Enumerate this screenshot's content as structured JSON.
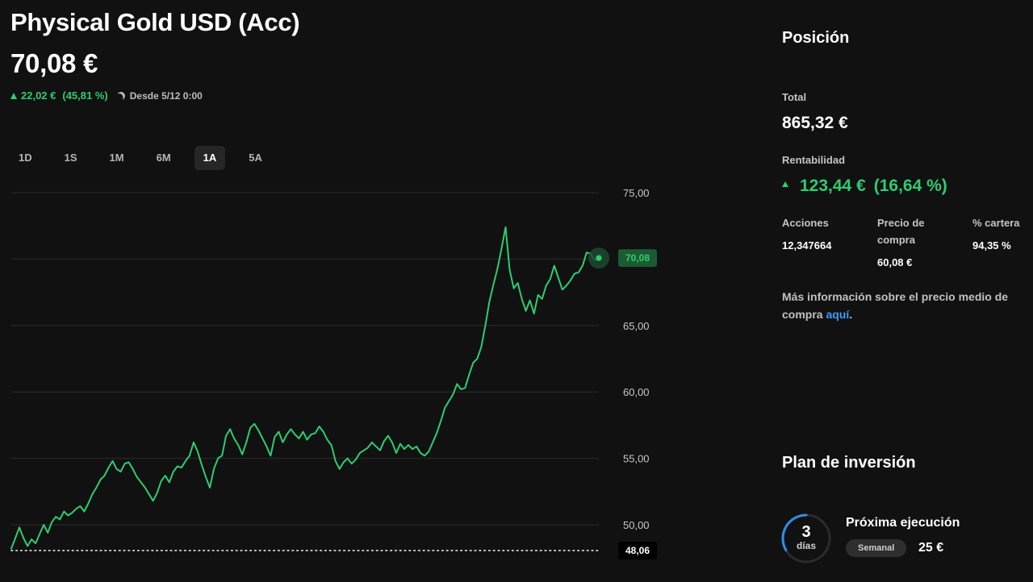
{
  "header": {
    "title": "Physical Gold USD (Acc)",
    "price": "70,08 €",
    "change_abs": "22,02 €",
    "change_pct": "(45,81 %)",
    "since": "Desde 5/12 0:00"
  },
  "range_tabs": [
    {
      "label": "1D",
      "active": false
    },
    {
      "label": "1S",
      "active": false
    },
    {
      "label": "1M",
      "active": false
    },
    {
      "label": "6M",
      "active": false
    },
    {
      "label": "1A",
      "active": true
    },
    {
      "label": "5A",
      "active": false
    }
  ],
  "chart_data": {
    "type": "line",
    "y_ticks": [
      "75,00",
      "70,00",
      "65,00",
      "60,00",
      "55,00",
      "50,00"
    ],
    "ylim": [
      48,
      75
    ],
    "series": [
      {
        "color": "#2ecc71",
        "values": [
          48.2,
          49.0,
          49.8,
          49.0,
          48.4,
          48.9,
          48.6,
          49.3,
          50.0,
          49.4,
          50.2,
          50.6,
          50.4,
          51.0,
          50.7,
          50.9,
          51.2,
          51.4,
          51.0,
          51.6,
          52.3,
          52.8,
          53.4,
          53.7,
          54.3,
          54.8,
          54.2,
          54.0,
          54.6,
          54.7,
          54.2,
          53.6,
          53.2,
          52.8,
          52.3,
          51.8,
          52.4,
          53.3,
          53.7,
          53.2,
          54.0,
          54.4,
          54.3,
          54.8,
          55.2,
          56.2,
          55.5,
          54.5,
          53.6,
          52.8,
          54.2,
          55.0,
          55.2,
          56.7,
          57.2,
          56.5,
          56.0,
          55.3,
          56.2,
          57.3,
          57.6,
          57.1,
          56.5,
          55.9,
          55.2,
          56.6,
          57.0,
          56.2,
          56.8,
          57.2,
          56.8,
          56.5,
          57.0,
          56.4,
          56.8,
          56.9,
          57.4,
          57.0,
          56.4,
          56.0,
          54.8,
          54.2,
          54.7,
          55.0,
          54.6,
          54.9,
          55.4,
          55.6,
          55.8,
          56.2,
          55.9,
          55.6,
          56.3,
          56.7,
          56.2,
          55.4,
          56.1,
          55.7,
          56.0,
          55.7,
          55.9,
          55.4,
          55.2,
          55.5,
          56.2,
          56.9,
          57.8,
          58.8,
          59.3,
          59.8,
          60.6,
          60.2,
          60.3,
          61.3,
          62.2,
          62.5,
          63.4,
          65.0,
          66.8,
          68.1,
          69.3,
          70.8,
          72.4,
          69.2,
          67.8,
          68.2,
          67.0,
          66.1,
          66.9,
          65.9,
          67.3,
          67.0,
          68.0,
          68.5,
          69.5,
          68.6,
          67.7,
          68.0,
          68.4,
          68.9,
          69.0,
          69.5,
          70.5,
          70.4,
          69.9,
          70.08
        ],
        "baseline": 48.06,
        "last": "70,08",
        "baseline_label": "48,06"
      }
    ]
  },
  "sidebar": {
    "title": "Posición",
    "total_label": "Total",
    "total_value": "865,32 €",
    "rent_label": "Rentabilidad",
    "rent_abs": "123,44 €",
    "rent_pct": "(16,64 %)",
    "acciones_label": "Acciones",
    "acciones_value": "12,347664",
    "precio_label_1": "Precio de",
    "precio_label_2": "compra",
    "precio_value": "60,08 €",
    "cartera_label": "% cartera",
    "cartera_value": "94,35 %",
    "info_text": "Más información sobre el precio medio de compra ",
    "info_link": "aquí",
    "info_end": "."
  },
  "plan": {
    "title": "Plan de inversión",
    "days_num": "3",
    "days_unit": "días",
    "next_label": "Próxima ejecución",
    "frequency": "Semanal",
    "amount": "25 €"
  },
  "colors": {
    "accent_green": "#2ecc71",
    "link_blue": "#3d9bff",
    "background": "#111111"
  }
}
